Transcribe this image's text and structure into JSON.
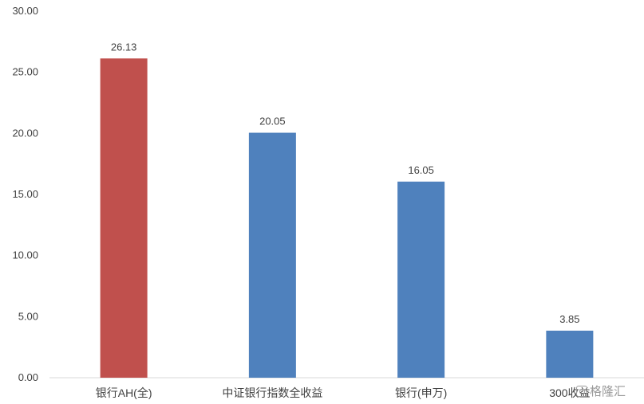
{
  "chart_data": {
    "type": "bar",
    "categories": [
      "银行AH(全)",
      "中证银行指数全收益",
      "银行(申万)",
      "300收益"
    ],
    "values": [
      26.13,
      20.05,
      16.05,
      3.85
    ],
    "value_labels": [
      "26.13",
      "20.05",
      "16.05",
      "3.85"
    ],
    "bar_colors": [
      "#c0504d",
      "#4f81bd",
      "#4f81bd",
      "#4f81bd"
    ],
    "ylim": [
      0,
      30
    ],
    "yticks": [
      "0.00",
      "5.00",
      "10.00",
      "15.00",
      "20.00",
      "25.00",
      "30.00"
    ],
    "grid": false,
    "legend": "none"
  },
  "watermark": {
    "text": "格隆汇",
    "icon": "gelonghui-logo-icon"
  }
}
